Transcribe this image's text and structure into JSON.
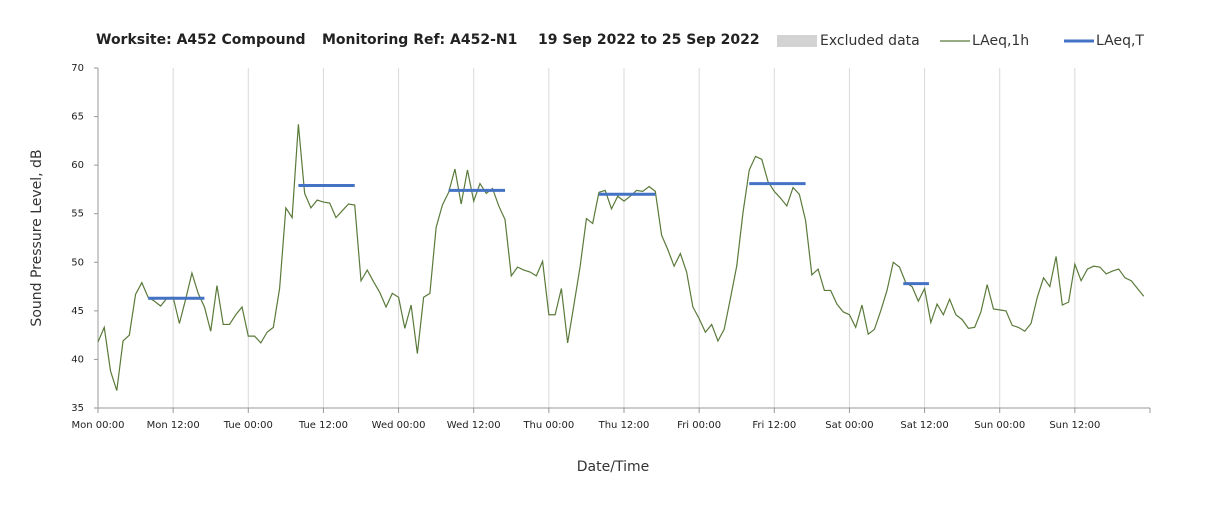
{
  "chart_data": {
    "type": "line",
    "title_parts": [
      "Worksite: A452 Compound",
      "Monitoring Ref: A452-N1",
      "19 Sep 2022 to 25 Sep 2022"
    ],
    "x_label": "Date/Time",
    "y_label": "Sound Pressure Level, dB",
    "legend_extra": {
      "name": "Excluded data",
      "color": "#d3d3d3"
    },
    "xlim": [
      0,
      168
    ],
    "xticks": [
      {
        "value": 0,
        "label": "Mon 00:00"
      },
      {
        "value": 12,
        "label": "Mon 12:00"
      },
      {
        "value": 24,
        "label": "Tue 00:00"
      },
      {
        "value": 36,
        "label": "Tue 12:00"
      },
      {
        "value": 48,
        "label": "Wed 00:00"
      },
      {
        "value": 60,
        "label": "Wed 12:00"
      },
      {
        "value": 72,
        "label": "Thu 00:00"
      },
      {
        "value": 84,
        "label": "Thu 12:00"
      },
      {
        "value": 96,
        "label": "Fri 00:00"
      },
      {
        "value": 108,
        "label": "Fri 12:00"
      },
      {
        "value": 120,
        "label": "Sat 00:00"
      },
      {
        "value": 132,
        "label": "Sat 12:00"
      },
      {
        "value": 144,
        "label": "Sun 00:00"
      },
      {
        "value": 156,
        "label": "Sun 12:00"
      }
    ],
    "ylim": [
      35,
      70
    ],
    "yticks": [
      35,
      40,
      45,
      50,
      55,
      60,
      65,
      70
    ],
    "grid_x": true,
    "x": [
      0,
      1,
      2,
      3,
      4,
      5,
      6,
      7,
      8,
      9,
      10,
      11,
      12,
      13,
      14,
      15,
      16,
      17,
      18,
      19,
      20,
      21,
      22,
      23,
      24,
      25,
      26,
      27,
      28,
      29,
      30,
      31,
      32,
      33,
      34,
      35,
      36,
      37,
      38,
      39,
      40,
      41,
      42,
      43,
      44,
      45,
      46,
      47,
      48,
      49,
      50,
      51,
      52,
      53,
      54,
      55,
      56,
      57,
      58,
      59,
      60,
      61,
      62,
      63,
      64,
      65,
      66,
      67,
      68,
      69,
      70,
      71,
      72,
      73,
      74,
      75,
      76,
      77,
      78,
      79,
      80,
      81,
      82,
      83,
      84,
      85,
      86,
      87,
      88,
      89,
      90,
      91,
      92,
      93,
      94,
      95,
      96,
      97,
      98,
      99,
      100,
      101,
      102,
      103,
      104,
      105,
      106,
      107,
      108,
      109,
      110,
      111,
      112,
      113,
      114,
      115,
      116,
      117,
      118,
      119,
      120,
      121,
      122,
      123,
      124,
      125,
      126,
      127,
      128,
      129,
      130,
      131,
      132,
      133,
      134,
      135,
      136,
      137,
      138,
      139,
      140,
      141,
      142,
      143,
      144,
      145,
      146,
      147,
      148,
      149,
      150,
      151,
      152,
      153,
      154,
      155,
      156,
      157,
      158,
      159,
      160,
      161,
      162,
      163,
      164,
      165,
      166,
      167
    ],
    "series": [
      {
        "name": "LAeq,1h",
        "color": "#5a7a3a",
        "values": [
          41.8,
          43.3,
          38.8,
          36.8,
          41.9,
          42.5,
          46.7,
          47.9,
          46.4,
          46.0,
          45.5,
          46.3,
          46.4,
          43.7,
          46.2,
          48.9,
          46.8,
          45.4,
          42.9,
          47.6,
          43.6,
          43.6,
          44.6,
          45.4,
          42.4,
          42.4,
          41.7,
          42.8,
          43.3,
          47.3,
          55.6,
          54.6,
          64.2,
          57.1,
          55.6,
          56.4,
          56.2,
          56.1,
          54.6,
          55.3,
          56.0,
          55.9,
          48.1,
          49.2,
          48.0,
          46.9,
          45.4,
          46.8,
          46.4,
          43.2,
          45.6,
          40.6,
          46.4,
          46.8,
          53.6,
          55.9,
          57.2,
          59.6,
          56.0,
          59.5,
          56.3,
          58.1,
          57.1,
          57.6,
          55.8,
          54.4,
          48.6,
          49.5,
          49.2,
          49.0,
          48.6,
          50.1,
          44.6,
          44.6,
          47.3,
          41.7,
          45.6,
          49.6,
          54.5,
          54.0,
          57.2,
          57.4,
          55.5,
          56.8,
          56.3,
          56.8,
          57.4,
          57.3,
          57.8,
          57.3,
          52.8,
          51.3,
          49.6,
          50.9,
          49.0,
          45.4,
          44.2,
          42.8,
          43.6,
          41.9,
          43.1,
          46.3,
          49.6,
          55.1,
          59.5,
          60.9,
          60.6,
          58.3,
          57.3,
          56.6,
          55.8,
          57.7,
          57.0,
          54.3,
          48.7,
          49.3,
          47.1,
          47.1,
          45.7,
          44.9,
          44.6,
          43.3,
          45.6,
          42.6,
          43.1,
          45.0,
          47.1,
          50.0,
          49.5,
          47.9,
          47.5,
          46.0,
          47.3,
          43.8,
          45.7,
          44.6,
          46.2,
          44.6,
          44.1,
          43.2,
          43.3,
          44.9,
          47.7,
          45.2,
          45.1,
          45.0,
          43.5,
          43.3,
          42.9,
          43.7,
          46.4,
          48.4,
          47.5,
          50.6,
          45.6,
          45.9,
          49.8,
          48.1,
          49.3,
          49.6,
          49.5,
          48.8,
          49.1,
          49.3,
          48.4,
          48.1,
          47.3,
          46.5
        ]
      },
      {
        "name": "LAeq,T",
        "color": "#4472c4",
        "intervals": [
          {
            "start": 8,
            "end": 17,
            "value": 46.3
          },
          {
            "start": 32,
            "end": 41,
            "value": 57.9
          },
          {
            "start": 56,
            "end": 65,
            "value": 57.4
          },
          {
            "start": 80,
            "end": 89,
            "value": 57.0
          },
          {
            "start": 104,
            "end": 113,
            "value": 58.1
          },
          {
            "start": 128.6,
            "end": 132.7,
            "value": 47.8
          }
        ]
      }
    ]
  }
}
